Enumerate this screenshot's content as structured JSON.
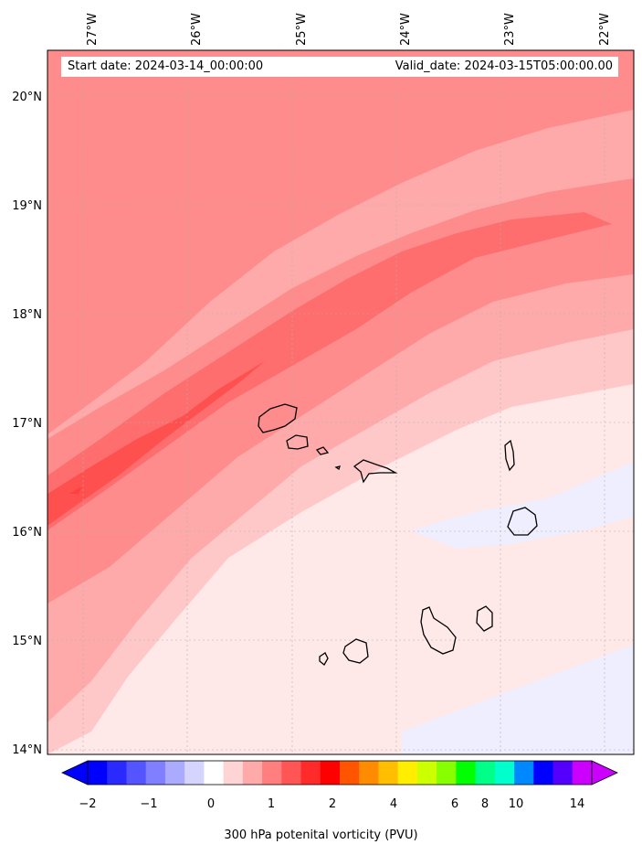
{
  "header": {
    "start_date": "Start date: 2024-03-14_00:00:00",
    "valid_date": "Valid_date: 2024-03-15T05:00:00.00"
  },
  "axes": {
    "lon_labels": [
      "27°W",
      "26°W",
      "25°W",
      "24°W",
      "23°W",
      "22°W"
    ],
    "lat_labels": [
      "20°N",
      "19°N",
      "18°N",
      "17°N",
      "16°N",
      "15°N",
      "14°N"
    ]
  },
  "colorbar": {
    "title": "300 hPa potenital vorticity (PVU)",
    "tick_labels": [
      "−2",
      "−1",
      "0",
      "1",
      "2",
      "4",
      "6",
      "8",
      "10",
      "14"
    ],
    "colors": [
      "#0000ff",
      "#2a2aff",
      "#5555ff",
      "#7f7fff",
      "#aaaaff",
      "#d4d4ff",
      "#ffffff",
      "#ffd4d4",
      "#ffaaaa",
      "#ff7f7f",
      "#ff5555",
      "#ff2a2a",
      "#ff0000",
      "#ff5500",
      "#ff8c00",
      "#ffbf00",
      "#ffee00",
      "#ccff00",
      "#88ff00",
      "#00ff00",
      "#00ff88",
      "#00ffcc",
      "#0088ff",
      "#0000ff",
      "#5500ff",
      "#cc00ff"
    ]
  },
  "islands": [
    "Santo Antão",
    "São Vicente",
    "Santa Luzia",
    "São Nicolau",
    "Sal",
    "Boa Vista",
    "Maio",
    "Santiago",
    "Fogo",
    "Brava"
  ]
}
